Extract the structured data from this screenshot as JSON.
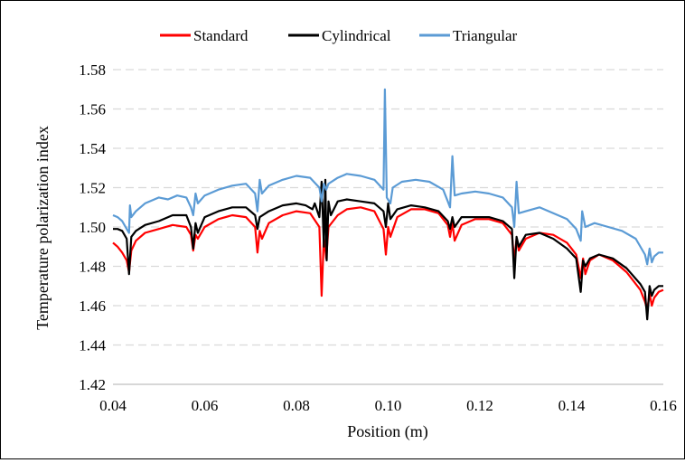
{
  "chart_data": {
    "type": "line",
    "title": "",
    "xlabel": "Position (m)",
    "ylabel": "Temperature polarization index",
    "xlim": [
      0.04,
      0.16
    ],
    "ylim": [
      1.42,
      1.58
    ],
    "x_ticks": [
      0.04,
      0.06,
      0.08,
      0.1,
      0.12,
      0.14,
      0.16
    ],
    "x_tick_labels": [
      "0.04",
      "0.06",
      "0.08",
      "0.10",
      "0.12",
      "0.14",
      "0.16"
    ],
    "y_ticks": [
      1.42,
      1.44,
      1.46,
      1.48,
      1.5,
      1.52,
      1.54,
      1.56,
      1.58
    ],
    "y_tick_labels": [
      "1.42",
      "1.44",
      "1.46",
      "1.48",
      "1.50",
      "1.52",
      "1.54",
      "1.56",
      "1.58"
    ],
    "grid": "horizontal",
    "legend_position": "top",
    "series": [
      {
        "name": "Standard",
        "color": "#ff0000",
        "points": [
          [
            0.04,
            1.492
          ],
          [
            0.041,
            1.49
          ],
          [
            0.042,
            1.487
          ],
          [
            0.043,
            1.483
          ],
          [
            0.0435,
            1.477
          ],
          [
            0.044,
            1.488
          ],
          [
            0.045,
            1.493
          ],
          [
            0.047,
            1.497
          ],
          [
            0.05,
            1.499
          ],
          [
            0.053,
            1.501
          ],
          [
            0.056,
            1.5
          ],
          [
            0.057,
            1.496
          ],
          [
            0.0575,
            1.488
          ],
          [
            0.058,
            1.496
          ],
          [
            0.0585,
            1.494
          ],
          [
            0.06,
            1.5
          ],
          [
            0.063,
            1.504
          ],
          [
            0.066,
            1.506
          ],
          [
            0.069,
            1.505
          ],
          [
            0.071,
            1.5
          ],
          [
            0.0715,
            1.487
          ],
          [
            0.072,
            1.498
          ],
          [
            0.0725,
            1.494
          ],
          [
            0.074,
            1.502
          ],
          [
            0.077,
            1.506
          ],
          [
            0.08,
            1.508
          ],
          [
            0.083,
            1.507
          ],
          [
            0.085,
            1.5
          ],
          [
            0.0855,
            1.465
          ],
          [
            0.086,
            1.495
          ],
          [
            0.0865,
            1.484
          ],
          [
            0.087,
            1.5
          ],
          [
            0.089,
            1.506
          ],
          [
            0.091,
            1.509
          ],
          [
            0.094,
            1.51
          ],
          [
            0.097,
            1.508
          ],
          [
            0.099,
            1.499
          ],
          [
            0.0995,
            1.486
          ],
          [
            0.1,
            1.5
          ],
          [
            0.1005,
            1.495
          ],
          [
            0.102,
            1.505
          ],
          [
            0.105,
            1.509
          ],
          [
            0.108,
            1.509
          ],
          [
            0.111,
            1.507
          ],
          [
            0.113,
            1.501
          ],
          [
            0.1135,
            1.495
          ],
          [
            0.114,
            1.502
          ],
          [
            0.1145,
            1.493
          ],
          [
            0.116,
            1.501
          ],
          [
            0.119,
            1.504
          ],
          [
            0.122,
            1.504
          ],
          [
            0.125,
            1.502
          ],
          [
            0.127,
            1.496
          ],
          [
            0.1275,
            1.483
          ],
          [
            0.128,
            1.494
          ],
          [
            0.1285,
            1.488
          ],
          [
            0.13,
            1.494
          ],
          [
            0.133,
            1.497
          ],
          [
            0.136,
            1.496
          ],
          [
            0.139,
            1.492
          ],
          [
            0.141,
            1.486
          ],
          [
            0.142,
            1.474
          ],
          [
            0.1425,
            1.484
          ],
          [
            0.143,
            1.476
          ],
          [
            0.144,
            1.483
          ],
          [
            0.146,
            1.486
          ],
          [
            0.149,
            1.483
          ],
          [
            0.152,
            1.477
          ],
          [
            0.155,
            1.468
          ],
          [
            0.156,
            1.462
          ],
          [
            0.1565,
            1.458
          ],
          [
            0.157,
            1.466
          ],
          [
            0.1575,
            1.46
          ],
          [
            0.158,
            1.464
          ],
          [
            0.159,
            1.467
          ],
          [
            0.16,
            1.468
          ]
        ]
      },
      {
        "name": "Cylindrical",
        "color": "#000000",
        "points": [
          [
            0.04,
            1.499
          ],
          [
            0.041,
            1.499
          ],
          [
            0.042,
            1.498
          ],
          [
            0.043,
            1.494
          ],
          [
            0.0435,
            1.476
          ],
          [
            0.044,
            1.495
          ],
          [
            0.045,
            1.498
          ],
          [
            0.047,
            1.501
          ],
          [
            0.05,
            1.503
          ],
          [
            0.053,
            1.506
          ],
          [
            0.056,
            1.506
          ],
          [
            0.057,
            1.5
          ],
          [
            0.0575,
            1.489
          ],
          [
            0.058,
            1.502
          ],
          [
            0.0585,
            1.497
          ],
          [
            0.06,
            1.505
          ],
          [
            0.063,
            1.508
          ],
          [
            0.066,
            1.51
          ],
          [
            0.069,
            1.51
          ],
          [
            0.071,
            1.506
          ],
          [
            0.0715,
            1.499
          ],
          [
            0.072,
            1.505
          ],
          [
            0.074,
            1.508
          ],
          [
            0.077,
            1.511
          ],
          [
            0.08,
            1.512
          ],
          [
            0.082,
            1.511
          ],
          [
            0.0835,
            1.509
          ],
          [
            0.084,
            1.512
          ],
          [
            0.085,
            1.505
          ],
          [
            0.0855,
            1.523
          ],
          [
            0.086,
            1.49
          ],
          [
            0.0863,
            1.524
          ],
          [
            0.0866,
            1.483
          ],
          [
            0.087,
            1.513
          ],
          [
            0.0875,
            1.506
          ],
          [
            0.089,
            1.513
          ],
          [
            0.091,
            1.514
          ],
          [
            0.094,
            1.513
          ],
          [
            0.097,
            1.512
          ],
          [
            0.099,
            1.508
          ],
          [
            0.0995,
            1.5
          ],
          [
            0.1,
            1.512
          ],
          [
            0.1005,
            1.504
          ],
          [
            0.102,
            1.509
          ],
          [
            0.105,
            1.511
          ],
          [
            0.108,
            1.51
          ],
          [
            0.111,
            1.508
          ],
          [
            0.113,
            1.503
          ],
          [
            0.1135,
            1.499
          ],
          [
            0.114,
            1.505
          ],
          [
            0.1145,
            1.5
          ],
          [
            0.116,
            1.505
          ],
          [
            0.119,
            1.505
          ],
          [
            0.122,
            1.505
          ],
          [
            0.125,
            1.503
          ],
          [
            0.127,
            1.499
          ],
          [
            0.1275,
            1.474
          ],
          [
            0.128,
            1.495
          ],
          [
            0.1285,
            1.49
          ],
          [
            0.13,
            1.496
          ],
          [
            0.133,
            1.497
          ],
          [
            0.136,
            1.494
          ],
          [
            0.139,
            1.489
          ],
          [
            0.141,
            1.484
          ],
          [
            0.142,
            1.467
          ],
          [
            0.1425,
            1.483
          ],
          [
            0.143,
            1.48
          ],
          [
            0.144,
            1.484
          ],
          [
            0.146,
            1.486
          ],
          [
            0.149,
            1.484
          ],
          [
            0.152,
            1.479
          ],
          [
            0.155,
            1.471
          ],
          [
            0.156,
            1.467
          ],
          [
            0.1565,
            1.453
          ],
          [
            0.157,
            1.47
          ],
          [
            0.1575,
            1.465
          ],
          [
            0.158,
            1.468
          ],
          [
            0.159,
            1.47
          ],
          [
            0.16,
            1.47
          ]
        ]
      },
      {
        "name": "Triangular",
        "color": "#5b9bd5",
        "points": [
          [
            0.04,
            1.506
          ],
          [
            0.041,
            1.505
          ],
          [
            0.042,
            1.503
          ],
          [
            0.043,
            1.499
          ],
          [
            0.0435,
            1.497
          ],
          [
            0.0437,
            1.511
          ],
          [
            0.044,
            1.505
          ],
          [
            0.045,
            1.508
          ],
          [
            0.047,
            1.512
          ],
          [
            0.05,
            1.515
          ],
          [
            0.052,
            1.514
          ],
          [
            0.054,
            1.516
          ],
          [
            0.056,
            1.515
          ],
          [
            0.057,
            1.51
          ],
          [
            0.0575,
            1.506
          ],
          [
            0.058,
            1.517
          ],
          [
            0.0585,
            1.512
          ],
          [
            0.06,
            1.516
          ],
          [
            0.063,
            1.519
          ],
          [
            0.066,
            1.521
          ],
          [
            0.069,
            1.522
          ],
          [
            0.071,
            1.517
          ],
          [
            0.0715,
            1.508
          ],
          [
            0.072,
            1.524
          ],
          [
            0.0725,
            1.517
          ],
          [
            0.074,
            1.521
          ],
          [
            0.077,
            1.524
          ],
          [
            0.08,
            1.526
          ],
          [
            0.083,
            1.525
          ],
          [
            0.085,
            1.52
          ],
          [
            0.0855,
            1.513
          ],
          [
            0.086,
            1.522
          ],
          [
            0.0865,
            1.519
          ],
          [
            0.087,
            1.522
          ],
          [
            0.089,
            1.525
          ],
          [
            0.091,
            1.527
          ],
          [
            0.094,
            1.526
          ],
          [
            0.097,
            1.524
          ],
          [
            0.099,
            1.519
          ],
          [
            0.0993,
            1.57
          ],
          [
            0.0997,
            1.515
          ],
          [
            0.1005,
            1.512
          ],
          [
            0.101,
            1.52
          ],
          [
            0.103,
            1.523
          ],
          [
            0.106,
            1.524
          ],
          [
            0.109,
            1.523
          ],
          [
            0.112,
            1.519
          ],
          [
            0.113,
            1.513
          ],
          [
            0.1135,
            1.51
          ],
          [
            0.114,
            1.536
          ],
          [
            0.1145,
            1.516
          ],
          [
            0.116,
            1.517
          ],
          [
            0.119,
            1.518
          ],
          [
            0.122,
            1.517
          ],
          [
            0.125,
            1.515
          ],
          [
            0.127,
            1.51
          ],
          [
            0.1275,
            1.5
          ],
          [
            0.128,
            1.523
          ],
          [
            0.1285,
            1.507
          ],
          [
            0.13,
            1.508
          ],
          [
            0.133,
            1.51
          ],
          [
            0.136,
            1.507
          ],
          [
            0.139,
            1.504
          ],
          [
            0.141,
            1.499
          ],
          [
            0.142,
            1.493
          ],
          [
            0.1423,
            1.508
          ],
          [
            0.143,
            1.5
          ],
          [
            0.145,
            1.502
          ],
          [
            0.148,
            1.5
          ],
          [
            0.151,
            1.498
          ],
          [
            0.154,
            1.494
          ],
          [
            0.156,
            1.486
          ],
          [
            0.1565,
            1.481
          ],
          [
            0.157,
            1.489
          ],
          [
            0.1575,
            1.482
          ],
          [
            0.158,
            1.485
          ],
          [
            0.159,
            1.487
          ],
          [
            0.16,
            1.487
          ]
        ]
      }
    ]
  }
}
